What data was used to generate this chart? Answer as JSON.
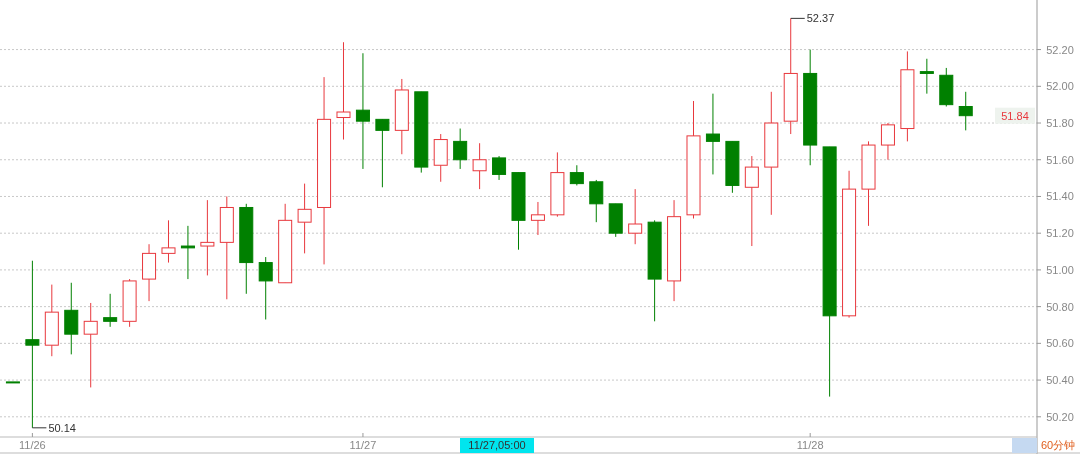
{
  "chart_data": {
    "type": "candlestick",
    "categories": [
      null,
      "11/26",
      null,
      null,
      null,
      null,
      null,
      null,
      null,
      null,
      null,
      null,
      null,
      null,
      null,
      null,
      null,
      null,
      "11/27",
      null,
      null,
      null,
      null,
      null,
      null,
      null,
      null,
      null,
      null,
      null,
      null,
      null,
      null,
      null,
      null,
      null,
      null,
      null,
      null,
      null,
      null,
      "11/28",
      null,
      null,
      null,
      null,
      null,
      null,
      null,
      null,
      null,
      null,
      null
    ],
    "ohlc": [
      [
        50.39,
        50.39,
        50.39,
        50.39
      ],
      [
        50.62,
        51.05,
        50.14,
        50.59
      ],
      [
        50.59,
        50.92,
        50.53,
        50.77
      ],
      [
        50.78,
        50.93,
        50.54,
        50.65
      ],
      [
        50.65,
        50.82,
        50.36,
        50.72
      ],
      [
        50.74,
        50.87,
        50.69,
        50.72
      ],
      [
        50.72,
        50.95,
        50.69,
        50.94
      ],
      [
        50.95,
        51.14,
        50.83,
        51.09
      ],
      [
        51.09,
        51.27,
        51.04,
        51.12
      ],
      [
        51.13,
        51.24,
        50.95,
        51.12
      ],
      [
        51.13,
        51.38,
        50.97,
        51.15
      ],
      [
        51.15,
        51.4,
        50.84,
        51.34
      ],
      [
        51.34,
        51.36,
        50.87,
        51.04
      ],
      [
        51.04,
        51.07,
        50.73,
        50.94
      ],
      [
        50.93,
        51.36,
        50.93,
        51.27
      ],
      [
        51.26,
        51.47,
        51.09,
        51.33
      ],
      [
        51.34,
        52.05,
        51.03,
        51.82
      ],
      [
        51.83,
        52.24,
        51.71,
        51.86
      ],
      [
        51.87,
        52.18,
        51.55,
        51.81
      ],
      [
        51.82,
        51.82,
        51.45,
        51.76
      ],
      [
        51.76,
        52.04,
        51.63,
        51.98
      ],
      [
        51.97,
        51.97,
        51.53,
        51.56
      ],
      [
        51.57,
        51.74,
        51.48,
        51.71
      ],
      [
        51.7,
        51.77,
        51.55,
        51.6
      ],
      [
        51.54,
        51.69,
        51.44,
        51.6
      ],
      [
        51.61,
        51.62,
        51.49,
        51.52
      ],
      [
        51.53,
        51.53,
        51.11,
        51.27
      ],
      [
        51.27,
        51.37,
        51.19,
        51.3
      ],
      [
        51.3,
        51.64,
        51.29,
        51.53
      ],
      [
        51.53,
        51.57,
        51.46,
        51.47
      ],
      [
        51.48,
        51.49,
        51.26,
        51.36
      ],
      [
        51.36,
        51.36,
        51.18,
        51.2
      ],
      [
        51.2,
        51.44,
        51.14,
        51.25
      ],
      [
        51.26,
        51.27,
        50.72,
        50.95
      ],
      [
        50.94,
        51.38,
        50.83,
        51.29
      ],
      [
        51.3,
        51.92,
        51.28,
        51.73
      ],
      [
        51.74,
        51.96,
        51.52,
        51.7
      ],
      [
        51.7,
        51.7,
        51.42,
        51.46
      ],
      [
        51.45,
        51.62,
        51.13,
        51.56
      ],
      [
        51.56,
        51.97,
        51.3,
        51.8
      ],
      [
        51.81,
        52.37,
        51.74,
        52.07
      ],
      [
        52.07,
        52.2,
        51.57,
        51.68
      ],
      [
        51.67,
        51.67,
        50.31,
        50.75
      ],
      [
        50.75,
        51.54,
        50.74,
        51.44
      ],
      [
        51.44,
        51.7,
        51.24,
        51.68
      ],
      [
        51.68,
        51.8,
        51.6,
        51.79
      ],
      [
        51.77,
        52.19,
        51.7,
        52.09
      ],
      [
        52.08,
        52.15,
        51.96,
        52.07
      ],
      [
        52.06,
        52.1,
        51.89,
        51.9
      ],
      [
        51.89,
        51.97,
        51.76,
        51.84
      ],
      null,
      null,
      null
    ],
    "colors": [
      "#008000",
      "#008000",
      "#e8383d",
      "#008000",
      "#e8383d",
      "#008000",
      "#e8383d",
      "#e8383d",
      "#e8383d",
      "#008000",
      "#e8383d",
      "#e8383d",
      "#008000",
      "#008000",
      "#e8383d",
      "#e8383d",
      "#e8383d",
      "#e8383d",
      "#008000",
      "#008000",
      "#e8383d",
      "#008000",
      "#e8383d",
      "#008000",
      "#e8383d",
      "#008000",
      "#008000",
      "#e8383d",
      "#e8383d",
      "#008000",
      "#008000",
      "#008000",
      "#e8383d",
      "#008000",
      "#e8383d",
      "#e8383d",
      "#008000",
      "#008000",
      "#e8383d",
      "#e8383d",
      "#e8383d",
      "#008000",
      "#008000",
      "#e8383d",
      "#e8383d",
      "#e8383d",
      "#e8383d",
      "#008000",
      "#008000",
      "#008000",
      null,
      null,
      null
    ],
    "ylim": [
      50.09,
      52.47
    ],
    "yticks": [
      {
        "value": 50.2,
        "label": "50.20"
      },
      {
        "value": 50.4,
        "label": "50.40"
      },
      {
        "value": 50.6,
        "label": "50.60"
      },
      {
        "value": 50.8,
        "label": "50.80"
      },
      {
        "value": 51.0,
        "label": "51.00"
      },
      {
        "value": 51.2,
        "label": "51.20"
      },
      {
        "value": 51.4,
        "label": "51.40"
      },
      {
        "value": 51.6,
        "label": "51.60"
      },
      {
        "value": 51.8,
        "label": "51.80"
      },
      {
        "value": 52.0,
        "label": "52.00"
      },
      {
        "value": 52.2,
        "label": "52.20"
      }
    ],
    "grid": "y",
    "annotations": [
      "50.14",
      "52.37",
      "51.84",
      "11/27,05:00",
      "60分钟"
    ]
  }
}
